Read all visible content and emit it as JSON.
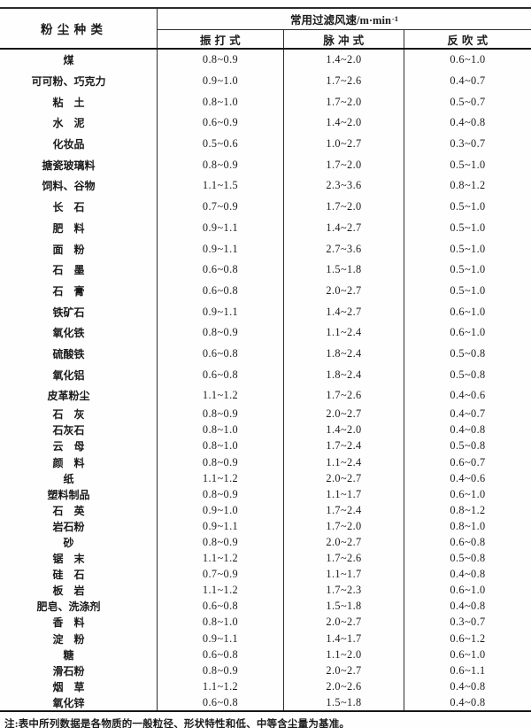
{
  "table": {
    "col1_header": "粉 尘 种 类",
    "span_header": {
      "text": "常用过滤风速/m·min",
      "sup": "-1"
    },
    "sub_headers": [
      "振 打 式",
      "脉 冲 式",
      "反 吹 式"
    ],
    "rows": [
      {
        "name": "煤",
        "values": [
          "0.8~0.9",
          "1.4~2.0",
          "0.6~1.0"
        ]
      },
      {
        "name": "可可粉、巧克力",
        "values": [
          "0.9~1.0",
          "1.7~2.6",
          "0.4~0.7"
        ]
      },
      {
        "name": "粘　土",
        "values": [
          "0.8~1.0",
          "1.7~2.0",
          "0.5~0.7"
        ]
      },
      {
        "name": "水　泥",
        "values": [
          "0.6~0.9",
          "1.4~2.0",
          "0.4~0.8"
        ]
      },
      {
        "name": "化妆品",
        "values": [
          "0.5~0.6",
          "1.0~2.7",
          "0.3~0.7"
        ]
      },
      {
        "name": "搪瓷玻璃料",
        "values": [
          "0.8~0.9",
          "1.7~2.0",
          "0.5~1.0"
        ]
      },
      {
        "name": "饲料、谷物",
        "values": [
          "1.1~1.5",
          "2.3~3.6",
          "0.8~1.2"
        ]
      },
      {
        "name": "长　石",
        "values": [
          "0.7~0.9",
          "1.7~2.0",
          "0.5~1.0"
        ]
      },
      {
        "name": "肥　料",
        "values": [
          "0.9~1.1",
          "1.4~2.7",
          "0.5~1.0"
        ]
      },
      {
        "name": "面　粉",
        "values": [
          "0.9~1.1",
          "2.7~3.6",
          "0.5~1.0"
        ]
      },
      {
        "name": "石　墨",
        "values": [
          "0.6~0.8",
          "1.5~1.8",
          "0.5~1.0"
        ]
      },
      {
        "name": "石　膏",
        "values": [
          "0.6~0.8",
          "2.0~2.7",
          "0.5~1.0"
        ]
      },
      {
        "name": "铁矿石",
        "values": [
          "0.9~1.1",
          "1.4~2.7",
          "0.6~1.0"
        ]
      },
      {
        "name": "氧化铁",
        "values": [
          "0.8~0.9",
          "1.1~2.4",
          "0.6~1.0"
        ]
      },
      {
        "name": "硫酸铁",
        "values": [
          "0.6~0.8",
          "1.8~2.4",
          "0.5~0.8"
        ]
      },
      {
        "name": "氧化铝",
        "values": [
          "0.6~0.8",
          "1.8~2.4",
          "0.5~0.8"
        ]
      },
      {
        "name": "皮革粉尘",
        "values": [
          "1.1~1.2",
          "1.7~2.6",
          "0.4~0.6"
        ]
      },
      {
        "name": "石　灰",
        "values": [
          "0.8~0.9",
          "2.0~2.7",
          "0.4~0.7"
        ]
      },
      {
        "name": "石灰石",
        "values": [
          "0.8~1.0",
          "1.4~2.0",
          "0.4~0.8"
        ]
      },
      {
        "name": "云　母",
        "values": [
          "0.8~1.0",
          "1.7~2.4",
          "0.5~0.8"
        ]
      },
      {
        "name": "颜　料",
        "values": [
          "0.8~0.9",
          "1.1~2.4",
          "0.6~0.7"
        ]
      },
      {
        "name": "纸",
        "values": [
          "1.1~1.2",
          "2.0~2.7",
          "0.4~0.6"
        ]
      },
      {
        "name": "塑料制品",
        "values": [
          "0.8~0.9",
          "1.1~1.7",
          "0.6~1.0"
        ]
      },
      {
        "name": "石　英",
        "values": [
          "0.9~1.0",
          "1.7~2.4",
          "0.8~1.2"
        ]
      },
      {
        "name": "岩石粉",
        "values": [
          "0.9~1.1",
          "1.7~2.0",
          "0.8~1.0"
        ]
      },
      {
        "name": "砂",
        "values": [
          "0.8~0.9",
          "2.0~2.7",
          "0.6~0.8"
        ]
      },
      {
        "name": "锯　末",
        "values": [
          "1.1~1.2",
          "1.7~2.6",
          "0.5~0.8"
        ]
      },
      {
        "name": "硅　石",
        "values": [
          "0.7~0.9",
          "1.1~1.7",
          "0.4~0.8"
        ]
      },
      {
        "name": "板　岩",
        "values": [
          "1.1~1.2",
          "1.7~2.3",
          "0.6~1.0"
        ]
      },
      {
        "name": "肥皂、洗涤剂",
        "values": [
          "0.6~0.8",
          "1.5~1.8",
          "0.4~0.8"
        ]
      },
      {
        "name": "香　料",
        "values": [
          "0.8~1.0",
          "2.0~2.7",
          "0.3~0.7"
        ]
      },
      {
        "name": "淀　粉",
        "values": [
          "0.9~1.1",
          "1.4~1.7",
          "0.6~1.2"
        ]
      },
      {
        "name": "糖",
        "values": [
          "0.6~0.8",
          "1.1~2.0",
          "0.6~1.0"
        ]
      },
      {
        "name": "滑石粉",
        "values": [
          "0.8~0.9",
          "2.0~2.7",
          "0.6~1.1"
        ]
      },
      {
        "name": "烟　草",
        "values": [
          "1.1~1.2",
          "2.0~2.6",
          "0.4~0.8"
        ]
      },
      {
        "name": "氧化锌",
        "values": [
          "0.6~0.8",
          "1.5~1.8",
          "0.4~0.8"
        ]
      }
    ]
  },
  "note": "注:表中所列数据是各物质的一般粒径、形状特性和低、中等含尘量为基准。"
}
